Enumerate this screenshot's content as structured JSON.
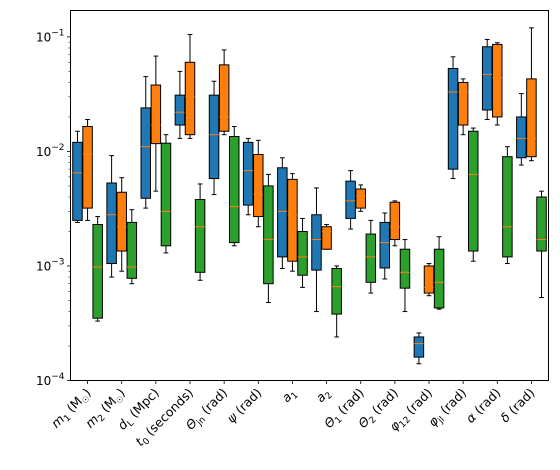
{
  "chart_data": {
    "type": "box",
    "y_scale": "log",
    "ylim": [
      0.0001,
      0.17
    ],
    "y_ticks": [
      {
        "value": 0.0001,
        "base": "10",
        "exp": "−4"
      },
      {
        "value": 0.001,
        "base": "10",
        "exp": "−3"
      },
      {
        "value": 0.01,
        "base": "10",
        "exp": "−2"
      },
      {
        "value": 0.1,
        "base": "10",
        "exp": "−1"
      }
    ],
    "grid": false,
    "legend": "none",
    "series_colors": [
      "#1f77b4",
      "#ff7f0e",
      "#2ca02c"
    ],
    "median_color": "#ff7f0e",
    "categories": [
      "m₁ (M☉)",
      "m₂ (M☉)",
      "d_L (Mpc)",
      "t₀ (seconds)",
      "Θ_jn (rad)",
      "ψ (rad)",
      "a₁",
      "a₂",
      "Θ₁ (rad)",
      "Θ₂ (rad)",
      "φ₁₂ (rad)",
      "φ_jl (rad)",
      "α (rad)",
      "δ (rad)"
    ],
    "category_labels": [
      {
        "main": "m",
        "sub": "1",
        "tail": " (M",
        "sun": true,
        "end": ")"
      },
      {
        "main": "m",
        "sub": "2",
        "tail": " (M",
        "sun": true,
        "end": ")"
      },
      {
        "main": "d",
        "sub": "L",
        "tail": " (Mpc)"
      },
      {
        "main": "t",
        "sub": "0",
        "tail": " (seconds)"
      },
      {
        "main": "Θ",
        "sub": "jn",
        "tail": " (rad)"
      },
      {
        "main": "ψ",
        "sub": "",
        "tail": " (rad)"
      },
      {
        "main": "a",
        "sub": "1",
        "tail": ""
      },
      {
        "main": "a",
        "sub": "2",
        "tail": ""
      },
      {
        "main": "Θ",
        "sub": "1",
        "tail": " (rad)"
      },
      {
        "main": "Θ",
        "sub": "2",
        "tail": " (rad)"
      },
      {
        "main": "φ",
        "sub": "12",
        "tail": " (rad)"
      },
      {
        "main": "φ",
        "sub": "jl",
        "tail": " (rad)"
      },
      {
        "main": "α",
        "sub": "",
        "tail": " (rad)"
      },
      {
        "main": "δ",
        "sub": "",
        "tail": " (rad)"
      }
    ],
    "series": [
      {
        "color": "#1f77b4",
        "boxes": [
          {
            "whislo": 0.0024,
            "q1": 0.0025,
            "med": 0.0065,
            "q3": 0.012,
            "whishi": 0.015
          },
          {
            "whislo": 0.0008,
            "q1": 0.00105,
            "med": 0.0028,
            "q3": 0.0053,
            "whishi": 0.0092
          },
          {
            "whislo": 0.0032,
            "q1": 0.0039,
            "med": 0.011,
            "q3": 0.024,
            "whishi": 0.045
          },
          {
            "whislo": 0.013,
            "q1": 0.017,
            "med": 0.022,
            "q3": 0.031,
            "whishi": 0.05
          },
          {
            "whislo": 0.0042,
            "q1": 0.0058,
            "med": 0.014,
            "q3": 0.031,
            "whishi": 0.041
          },
          {
            "whislo": 0.0028,
            "q1": 0.0034,
            "med": 0.0068,
            "q3": 0.012,
            "whishi": 0.013
          },
          {
            "whislo": 0.00095,
            "q1": 0.0012,
            "med": 0.003,
            "q3": 0.0072,
            "whishi": 0.0088
          },
          {
            "whislo": 0.0004,
            "q1": 0.00092,
            "med": 0.0017,
            "q3": 0.0028,
            "whishi": 0.0048
          },
          {
            "whislo": 0.0021,
            "q1": 0.0026,
            "med": 0.0037,
            "q3": 0.0055,
            "whishi": 0.0068
          },
          {
            "whislo": 0.00077,
            "q1": 0.00096,
            "med": 0.0016,
            "q3": 0.0024,
            "whishi": 0.0029
          },
          {
            "whislo": 0.00014,
            "q1": 0.00016,
            "med": 0.00021,
            "q3": 0.00024,
            "whishi": 0.00026
          },
          {
            "whislo": 0.0058,
            "q1": 0.007,
            "med": 0.033,
            "q3": 0.053,
            "whishi": 0.067
          },
          {
            "whislo": 0.019,
            "q1": 0.023,
            "med": 0.047,
            "q3": 0.082,
            "whishi": 0.095
          },
          {
            "whislo": 0.0076,
            "q1": 0.0088,
            "med": 0.013,
            "q3": 0.02,
            "whishi": 0.032
          }
        ]
      },
      {
        "color": "#ff7f0e",
        "boxes": [
          {
            "whislo": 0.0025,
            "q1": 0.0032,
            "med": 0.0095,
            "q3": 0.0165,
            "whishi": 0.019
          },
          {
            "whislo": 0.0009,
            "q1": 0.00135,
            "med": 0.0022,
            "q3": 0.0044,
            "whishi": 0.0059
          },
          {
            "whislo": 0.0045,
            "q1": 0.0117,
            "med": 0.017,
            "q3": 0.038,
            "whishi": 0.068
          },
          {
            "whislo": 0.013,
            "q1": 0.014,
            "med": 0.03,
            "q3": 0.06,
            "whishi": 0.105
          },
          {
            "whislo": 0.014,
            "q1": 0.015,
            "med": 0.02,
            "q3": 0.057,
            "whishi": 0.077
          },
          {
            "whislo": 0.0022,
            "q1": 0.0027,
            "med": 0.0042,
            "q3": 0.0094,
            "whishi": 0.0125
          },
          {
            "whislo": 0.0009,
            "q1": 0.0011,
            "med": 0.0028,
            "q3": 0.0057,
            "whishi": 0.0064
          },
          {
            "whislo": 0.0014,
            "q1": 0.0014,
            "med": 0.002,
            "q3": 0.0022,
            "whishi": 0.0023
          },
          {
            "whislo": 0.003,
            "q1": 0.0032,
            "med": 0.0041,
            "q3": 0.0047,
            "whishi": 0.0051
          },
          {
            "whislo": 0.0015,
            "q1": 0.0017,
            "med": 0.0022,
            "q3": 0.0036,
            "whishi": 0.0037
          },
          {
            "whislo": 0.00055,
            "q1": 0.00058,
            "med": 0.00065,
            "q3": 0.001,
            "whishi": 0.00105
          },
          {
            "whislo": 0.014,
            "q1": 0.017,
            "med": 0.033,
            "q3": 0.04,
            "whishi": 0.043
          },
          {
            "whislo": 0.017,
            "q1": 0.02,
            "med": 0.044,
            "q3": 0.086,
            "whishi": 0.089
          },
          {
            "whislo": 0.0083,
            "q1": 0.009,
            "med": 0.013,
            "q3": 0.043,
            "whishi": 0.12
          }
        ]
      },
      {
        "color": "#2ca02c",
        "boxes": [
          {
            "whislo": 0.00033,
            "q1": 0.00035,
            "med": 0.00098,
            "q3": 0.0023,
            "whishi": 0.0027
          },
          {
            "whislo": 0.0007,
            "q1": 0.00078,
            "med": 0.00098,
            "q3": 0.0024,
            "whishi": 0.0031
          },
          {
            "whislo": 0.0013,
            "q1": 0.0015,
            "med": 0.003,
            "q3": 0.0118,
            "whishi": 0.014
          },
          {
            "whislo": 0.00075,
            "q1": 0.00088,
            "med": 0.0022,
            "q3": 0.0038,
            "whishi": 0.0052
          },
          {
            "whislo": 0.0015,
            "q1": 0.0016,
            "med": 0.0033,
            "q3": 0.0135,
            "whishi": 0.0165
          },
          {
            "whislo": 0.00048,
            "q1": 0.0007,
            "med": 0.0017,
            "q3": 0.005,
            "whishi": 0.0063
          },
          {
            "whislo": 0.00065,
            "q1": 0.00083,
            "med": 0.0012,
            "q3": 0.002,
            "whishi": 0.0026
          },
          {
            "whislo": 0.00024,
            "q1": 0.00038,
            "med": 0.00066,
            "q3": 0.00095,
            "whishi": 0.001
          },
          {
            "whislo": 0.00058,
            "q1": 0.00072,
            "med": 0.0012,
            "q3": 0.0019,
            "whishi": 0.0025
          },
          {
            "whislo": 0.0004,
            "q1": 0.00064,
            "med": 0.00088,
            "q3": 0.0014,
            "whishi": 0.0017
          },
          {
            "whislo": 0.00042,
            "q1": 0.00043,
            "med": 0.00072,
            "q3": 0.0014,
            "whishi": 0.0018
          },
          {
            "whislo": 0.0011,
            "q1": 0.00135,
            "med": 0.0063,
            "q3": 0.015,
            "whishi": 0.016
          },
          {
            "whislo": 0.00105,
            "q1": 0.0012,
            "med": 0.0022,
            "q3": 0.009,
            "whishi": 0.011
          },
          {
            "whislo": 0.00053,
            "q1": 0.00135,
            "med": 0.0017,
            "q3": 0.004,
            "whishi": 0.0045
          }
        ]
      }
    ]
  }
}
